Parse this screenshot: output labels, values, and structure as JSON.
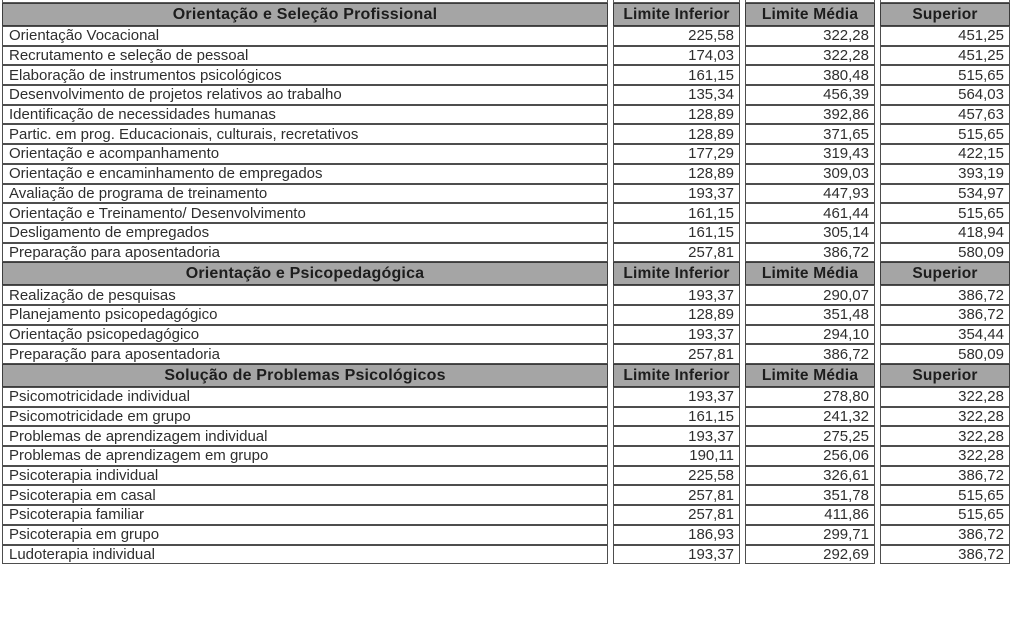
{
  "table": {
    "columns": [
      "Limite Inferior",
      "Limite Média",
      "Superior"
    ],
    "sections": [
      {
        "title": "Orientação e Seleção Profissional",
        "rows": [
          {
            "label": "Orientação Vocacional",
            "values": [
              "225,58",
              "322,28",
              "451,25"
            ]
          },
          {
            "label": "Recrutamento e seleção de pessoal",
            "values": [
              "174,03",
              "322,28",
              "451,25"
            ]
          },
          {
            "label": "Elaboração de instrumentos psicológicos",
            "values": [
              "161,15",
              "380,48",
              "515,65"
            ]
          },
          {
            "label": "Desenvolvimento de projetos relativos ao trabalho",
            "values": [
              "135,34",
              "456,39",
              "564,03"
            ]
          },
          {
            "label": "Identificação de necessidades humanas",
            "values": [
              "128,89",
              "392,86",
              "457,63"
            ]
          },
          {
            "label": "Partic. em prog. Educacionais, culturais, recretativos",
            "values": [
              "128,89",
              "371,65",
              "515,65"
            ]
          },
          {
            "label": "Orientação e acompanhamento",
            "values": [
              "177,29",
              "319,43",
              "422,15"
            ]
          },
          {
            "label": "Orientação e encaminhamento de empregados",
            "values": [
              "128,89",
              "309,03",
              "393,19"
            ]
          },
          {
            "label": "Avaliação de programa de treinamento",
            "values": [
              "193,37",
              "447,93",
              "534,97"
            ]
          },
          {
            "label": "Orientação e Treinamento/ Desenvolvimento",
            "values": [
              "161,15",
              "461,44",
              "515,65"
            ]
          },
          {
            "label": "Desligamento de empregados",
            "values": [
              "161,15",
              "305,14",
              "418,94"
            ]
          },
          {
            "label": "Preparação para aposentadoria",
            "values": [
              "257,81",
              "386,72",
              "580,09"
            ]
          }
        ]
      },
      {
        "title": "Orientação e Psicopedagógica",
        "rows": [
          {
            "label": "Realização de pesquisas",
            "values": [
              "193,37",
              "290,07",
              "386,72"
            ]
          },
          {
            "label": "Planejamento psicopedagógico",
            "values": [
              "128,89",
              "351,48",
              "386,72"
            ]
          },
          {
            "label": "Orientação psicopedagógico",
            "values": [
              "193,37",
              "294,10",
              "354,44"
            ]
          },
          {
            "label": "Preparação para aposentadoria",
            "values": [
              "257,81",
              "386,72",
              "580,09"
            ]
          }
        ]
      },
      {
        "title": "Solução de Problemas Psicológicos",
        "rows": [
          {
            "label": "Psicomotricidade individual",
            "values": [
              "193,37",
              "278,80",
              "322,28"
            ]
          },
          {
            "label": "Psicomotricidade em grupo",
            "values": [
              "161,15",
              "241,32",
              "322,28"
            ]
          },
          {
            "label": "Problemas de aprendizagem individual",
            "values": [
              "193,37",
              "275,25",
              "322,28"
            ]
          },
          {
            "label": "Problemas de aprendizagem em grupo",
            "values": [
              "190,11",
              "256,06",
              "322,28"
            ]
          },
          {
            "label": "Psicoterapia individual",
            "values": [
              "225,58",
              "326,61",
              "386,72"
            ]
          },
          {
            "label": "Psicoterapia em casal",
            "values": [
              "257,81",
              "351,78",
              "515,65"
            ]
          },
          {
            "label": "Psicoterapia familiar",
            "values": [
              "257,81",
              "411,86",
              "515,65"
            ]
          },
          {
            "label": "Psicoterapia em grupo",
            "values": [
              "186,93",
              "299,71",
              "386,72"
            ]
          },
          {
            "label": "Ludoterapia individual",
            "values": [
              "193,37",
              "292,69",
              "386,72"
            ]
          }
        ]
      }
    ]
  },
  "colors": {
    "section_header_bg": "#a5a5a5",
    "border": "#4e4e4e",
    "text": "#2e2e2e"
  }
}
